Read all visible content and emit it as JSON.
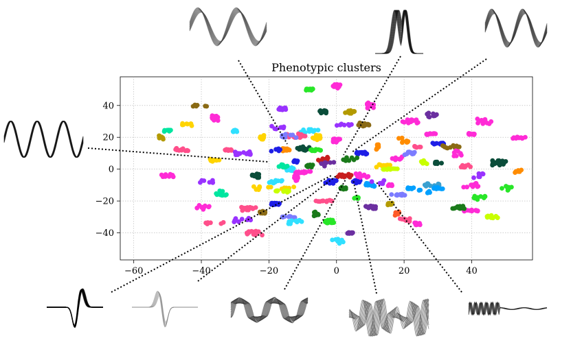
{
  "chart_data": {
    "type": "scatter",
    "title": "Phenotypic clusters",
    "xlabel": "",
    "ylabel": "",
    "xlim": [
      -64,
      58
    ],
    "ylim": [
      -57,
      58
    ],
    "xticks": [
      -60,
      -40,
      -20,
      0,
      20,
      40
    ],
    "yticks": [
      -40,
      -20,
      0,
      20,
      40
    ],
    "xtick_labels": [
      "−60",
      "−40",
      "−20",
      "0",
      "20",
      "40"
    ],
    "ytick_labels": [
      "−40",
      "−20",
      "0",
      "20",
      "40"
    ],
    "grid": true,
    "grid_style": "dotted",
    "legend": "none",
    "palette": [
      "#ff2bd6",
      "#ff4f8b",
      "#9932ff",
      "#1e1ee6",
      "#00a0ff",
      "#30e0ff",
      "#00e6a0",
      "#28e628",
      "#1a7a1a",
      "#c8ff00",
      "#ffd400",
      "#ff8c00",
      "#ff5a28",
      "#c81e1e",
      "#8a6a14",
      "#6b2fa0",
      "#7c7cff",
      "#0b4d3a",
      "#b39a00",
      "#3aa0d0"
    ],
    "clusters": [
      {
        "x": -14,
        "y": 0,
        "color": "#30e0ff"
      },
      {
        "x": -16,
        "y": 2,
        "color": "#00e6a0"
      },
      {
        "x": -12,
        "y": 5,
        "color": "#1e1ee6"
      },
      {
        "x": -15,
        "y": 12,
        "color": "#ff8c00"
      },
      {
        "x": -18,
        "y": 12,
        "color": "#1e1ee6"
      },
      {
        "x": -10,
        "y": 13,
        "color": "#0b4d3a"
      },
      {
        "x": -6,
        "y": 12,
        "color": "#28e628"
      },
      {
        "x": -8,
        "y": 2,
        "color": "#1a7a1a"
      },
      {
        "x": -4,
        "y": 6,
        "color": "#c81e1e"
      },
      {
        "x": -2,
        "y": 3,
        "color": "#6b2fa0"
      },
      {
        "x": -16,
        "y": 38,
        "color": "#9932ff"
      },
      {
        "x": -17,
        "y": 26,
        "color": "#9932ff"
      },
      {
        "x": -8,
        "y": 24,
        "color": "#30e0ff"
      },
      {
        "x": -12,
        "y": 21,
        "color": "#ff4f8b"
      },
      {
        "x": -14,
        "y": 21,
        "color": "#7c7cff"
      },
      {
        "x": -30,
        "y": 24,
        "color": "#30e0ff"
      },
      {
        "x": -32,
        "y": 12,
        "color": "#ff4f8b"
      },
      {
        "x": -28,
        "y": 10,
        "color": "#9932ff"
      },
      {
        "x": -36,
        "y": 5,
        "color": "#ffd400"
      },
      {
        "x": -34,
        "y": -15,
        "color": "#00e6a0"
      },
      {
        "x": -14,
        "y": -12,
        "color": "#ffd400"
      },
      {
        "x": -16,
        "y": -14,
        "color": "#c8ff00"
      },
      {
        "x": -22,
        "y": -12,
        "color": "#ffd400"
      },
      {
        "x": -18,
        "y": -8,
        "color": "#30e0ff"
      },
      {
        "x": -12,
        "y": -6,
        "color": "#ff2bd6"
      },
      {
        "x": -24,
        "y": -4,
        "color": "#0b4d3a"
      },
      {
        "x": -26,
        "y": -25,
        "color": "#ff4f8b"
      },
      {
        "x": -24,
        "y": -40,
        "color": "#ff4f8b"
      },
      {
        "x": -22,
        "y": -27,
        "color": "#8a6a14"
      },
      {
        "x": -14,
        "y": -30,
        "color": "#7c7cff"
      },
      {
        "x": -12,
        "y": -33,
        "color": "#30e0ff"
      },
      {
        "x": -6,
        "y": -28,
        "color": "#1a7a1a"
      },
      {
        "x": -2,
        "y": -33,
        "color": "#28e628"
      },
      {
        "x": 0,
        "y": -45,
        "color": "#30e0ff"
      },
      {
        "x": 4,
        "y": -40,
        "color": "#6b2fa0"
      },
      {
        "x": -8,
        "y": 50,
        "color": "#28e628"
      },
      {
        "x": 0,
        "y": 52,
        "color": "#ff2bd6"
      },
      {
        "x": 10,
        "y": 40,
        "color": "#ff2bd6"
      },
      {
        "x": 4,
        "y": 36,
        "color": "#b39a00"
      },
      {
        "x": 8,
        "y": 28,
        "color": "#8a6a14"
      },
      {
        "x": 12,
        "y": 14,
        "color": "#ff8c00"
      },
      {
        "x": 8,
        "y": 10,
        "color": "#1e1ee6"
      },
      {
        "x": 4,
        "y": 6,
        "color": "#1a7a1a"
      },
      {
        "x": 2,
        "y": -4,
        "color": "#c81e1e"
      },
      {
        "x": 6,
        "y": -8,
        "color": "#1e1ee6"
      },
      {
        "x": 2,
        "y": -12,
        "color": "#1a7a1a"
      },
      {
        "x": 6,
        "y": -18,
        "color": "#28e628"
      },
      {
        "x": 8,
        "y": -4,
        "color": "#ff2bd6"
      },
      {
        "x": 10,
        "y": -10,
        "color": "#00a0ff"
      },
      {
        "x": 12,
        "y": -8,
        "color": "#9932ff"
      },
      {
        "x": 16,
        "y": -10,
        "color": "#ff2bd6"
      },
      {
        "x": 22,
        "y": -12,
        "color": "#00a0ff"
      },
      {
        "x": 26,
        "y": -14,
        "color": "#00a0ff"
      },
      {
        "x": 28,
        "y": -10,
        "color": "#3aa0d0"
      },
      {
        "x": 30,
        "y": -12,
        "color": "#00a0ff"
      },
      {
        "x": 18,
        "y": -16,
        "color": "#7c7cff"
      },
      {
        "x": 14,
        "y": 2,
        "color": "#ffd400"
      },
      {
        "x": 16,
        "y": 0,
        "color": "#c8ff00"
      },
      {
        "x": 18,
        "y": 6,
        "color": "#ff2bd6"
      },
      {
        "x": 22,
        "y": 10,
        "color": "#7c7cff"
      },
      {
        "x": 26,
        "y": 4,
        "color": "#c8ff00"
      },
      {
        "x": 30,
        "y": 4,
        "color": "#0b4d3a"
      },
      {
        "x": 20,
        "y": 18,
        "color": "#ff8c00"
      },
      {
        "x": 24,
        "y": 14,
        "color": "#ff4f8b"
      },
      {
        "x": 28,
        "y": 22,
        "color": "#ff2bd6"
      },
      {
        "x": 30,
        "y": 16,
        "color": "#1e1ee6"
      },
      {
        "x": 34,
        "y": 14,
        "color": "#8a6a14"
      },
      {
        "x": 36,
        "y": 10,
        "color": "#ff2bd6"
      },
      {
        "x": 22,
        "y": 30,
        "color": "#ff2bd6"
      },
      {
        "x": 28,
        "y": 34,
        "color": "#6b2fa0"
      },
      {
        "x": 40,
        "y": 22,
        "color": "#ff2bd6"
      },
      {
        "x": 44,
        "y": 30,
        "color": "#ff2bd6"
      },
      {
        "x": 38,
        "y": 2,
        "color": "#ff4f8b"
      },
      {
        "x": 42,
        "y": -4,
        "color": "#9932ff"
      },
      {
        "x": 40,
        "y": -10,
        "color": "#ff2bd6"
      },
      {
        "x": 42,
        "y": -18,
        "color": "#28e628"
      },
      {
        "x": 40,
        "y": -26,
        "color": "#ff2bd6"
      },
      {
        "x": 46,
        "y": -30,
        "color": "#c8ff00"
      },
      {
        "x": 36,
        "y": -24,
        "color": "#1a7a1a"
      },
      {
        "x": 18,
        "y": -28,
        "color": "#ff5a28"
      },
      {
        "x": 20,
        "y": -32,
        "color": "#ff4f8b"
      },
      {
        "x": 24,
        "y": -34,
        "color": "#ff2bd6"
      },
      {
        "x": 16,
        "y": -22,
        "color": "#b39a00"
      },
      {
        "x": 10,
        "y": -24,
        "color": "#6b2fa0"
      },
      {
        "x": 54,
        "y": 20,
        "color": "#ff2bd6"
      },
      {
        "x": 54,
        "y": -2,
        "color": "#ff8c00"
      },
      {
        "x": 50,
        "y": -12,
        "color": "#28e628"
      },
      {
        "x": 48,
        "y": 4,
        "color": "#0b4d3a"
      },
      {
        "x": -52,
        "y": 20,
        "color": "#b39a00"
      },
      {
        "x": -50,
        "y": 24,
        "color": "#00e6a0"
      },
      {
        "x": -50,
        "y": -4,
        "color": "#ff2bd6"
      },
      {
        "x": -46,
        "y": 12,
        "color": "#ff4f8b"
      },
      {
        "x": -44,
        "y": 28,
        "color": "#ffd400"
      },
      {
        "x": -40,
        "y": 40,
        "color": "#8a6a14"
      },
      {
        "x": -36,
        "y": 32,
        "color": "#ff2bd6"
      },
      {
        "x": -40,
        "y": -24,
        "color": "#ff2bd6"
      },
      {
        "x": -38,
        "y": -8,
        "color": "#9932ff"
      },
      {
        "x": -36,
        "y": -34,
        "color": "#ff4f8b"
      },
      {
        "x": -28,
        "y": -32,
        "color": "#9932ff"
      },
      {
        "x": -18,
        "y": -22,
        "color": "#1e1ee6"
      },
      {
        "x": -4,
        "y": -20,
        "color": "#ff4f8b"
      },
      {
        "x": -6,
        "y": 20,
        "color": "#ffd400"
      },
      {
        "x": 0,
        "y": 18,
        "color": "#ff2bd6"
      },
      {
        "x": 2,
        "y": 28,
        "color": "#9932ff"
      },
      {
        "x": -4,
        "y": 36,
        "color": "#0b4d3a"
      },
      {
        "x": -22,
        "y": 20,
        "color": "#ffd400"
      },
      {
        "x": -2,
        "y": -8,
        "color": "#1e1ee6"
      },
      {
        "x": -10,
        "y": -2,
        "color": "#ff2bd6"
      }
    ]
  }
}
